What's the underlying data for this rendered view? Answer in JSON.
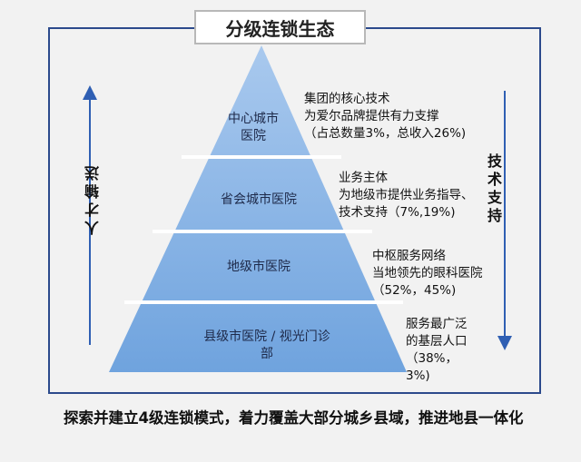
{
  "title": "分级连锁生态",
  "tiers": [
    {
      "label": "中心城市医院",
      "desc": [
        "集团的核心技术",
        "为爱尔品牌提供有力支撑",
        "（占总数量3%，总收入26%)"
      ]
    },
    {
      "label": "省会城市医院",
      "desc": [
        "业务主体",
        "为地级市提供业务指导、",
        "技术支持（7%,19%)"
      ]
    },
    {
      "label": "地级市医院",
      "desc": [
        "中枢服务网络",
        "当地领先的眼科医院",
        "（52%，45%)"
      ]
    },
    {
      "label": "县级市医院 / 视光门诊部",
      "desc": [
        "服务最广泛",
        "的基层人口",
        "（38%，",
        "3%)"
      ]
    }
  ],
  "left_vertical": "人才输送",
  "right_vertical": "技术支持",
  "caption": "探索并建立4级连锁模式，着力覆盖大部分城乡县域，推进地县一体化",
  "colors": {
    "pyramid_top": "#a9c9ee",
    "pyramid_bottom": "#6fa3de",
    "frame": "#2c4a8c",
    "arrow": "#2f5fb3"
  }
}
